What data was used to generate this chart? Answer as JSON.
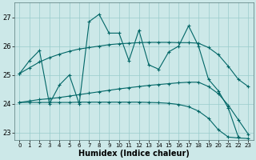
{
  "xlabel": "Humidex (Indice chaleur)",
  "bg_color": "#cce8e8",
  "grid_color": "#99cccc",
  "line_color": "#006666",
  "xlim": [
    -0.5,
    23.5
  ],
  "ylim": [
    22.75,
    27.5
  ],
  "yticks": [
    23,
    24,
    25,
    26,
    27
  ],
  "xticks": [
    0,
    1,
    2,
    3,
    4,
    5,
    6,
    7,
    8,
    9,
    10,
    11,
    12,
    13,
    14,
    15,
    16,
    17,
    18,
    19,
    20,
    21,
    22,
    23
  ],
  "s1_x": [
    0,
    1,
    2,
    3,
    4,
    5,
    6,
    7,
    8,
    9,
    10,
    11,
    12,
    13,
    14,
    15,
    16,
    17,
    18,
    19,
    20,
    21,
    22
  ],
  "s1_y": [
    25.05,
    25.5,
    25.85,
    24.0,
    24.65,
    25.0,
    24.0,
    26.85,
    27.1,
    26.45,
    26.45,
    25.5,
    26.55,
    25.35,
    25.2,
    25.8,
    26.0,
    26.7,
    26.0,
    24.85,
    24.45,
    23.85,
    22.85
  ],
  "s2_x": [
    0,
    1,
    2,
    3,
    4,
    5,
    6,
    7,
    8,
    9,
    10,
    11,
    12,
    13,
    14,
    15,
    16,
    17,
    18,
    19,
    20,
    21,
    22,
    23
  ],
  "s2_y": [
    25.05,
    25.25,
    25.45,
    25.6,
    25.72,
    25.82,
    25.9,
    25.95,
    26.0,
    26.05,
    26.08,
    26.1,
    26.12,
    26.13,
    26.13,
    26.13,
    26.12,
    26.12,
    26.1,
    25.95,
    25.7,
    25.3,
    24.85,
    24.6
  ],
  "s3_x": [
    0,
    1,
    2,
    3,
    4,
    5,
    6,
    7,
    8,
    9,
    10,
    11,
    12,
    13,
    14,
    15,
    16,
    17,
    18,
    19,
    20,
    21,
    22,
    23
  ],
  "s3_y": [
    24.05,
    24.1,
    24.15,
    24.18,
    24.22,
    24.27,
    24.32,
    24.37,
    24.42,
    24.47,
    24.52,
    24.56,
    24.6,
    24.64,
    24.67,
    24.7,
    24.73,
    24.75,
    24.75,
    24.6,
    24.35,
    23.95,
    23.45,
    22.95
  ],
  "s4_x": [
    0,
    1,
    2,
    3,
    4,
    5,
    6,
    7,
    8,
    9,
    10,
    11,
    12,
    13,
    14,
    15,
    16,
    17,
    18,
    19,
    20,
    21,
    22,
    23
  ],
  "s4_y": [
    24.05,
    24.05,
    24.05,
    24.05,
    24.05,
    24.05,
    24.06,
    24.06,
    24.06,
    24.06,
    24.06,
    24.06,
    24.06,
    24.05,
    24.04,
    24.02,
    23.98,
    23.9,
    23.75,
    23.5,
    23.1,
    22.85,
    22.82,
    22.8
  ]
}
